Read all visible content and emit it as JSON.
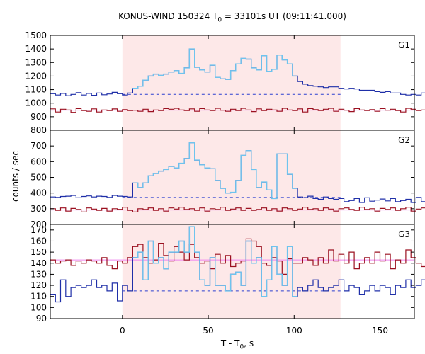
{
  "title": {
    "prefix": "KONUS-WIND 150324 T",
    "subscript": "0",
    "suffix": " = 33101s UT (09:11:41.000)"
  },
  "axes": {
    "xlabel_prefix": "T - T",
    "xlabel_subscript": "0",
    "xlabel_suffix": ", s",
    "ylabel": "counts / sec"
  },
  "colors": {
    "shading": "#fde8e8",
    "binned_dark": "#1f2fa8",
    "binned_light": "#6ec4ee",
    "background_dark": "#9b1020",
    "bg_fit_blue": "#2b3fd0",
    "bg_fit_pink": "#ee82ee"
  },
  "chart_data": {
    "type": "line",
    "x_range": [
      -42,
      170
    ],
    "x_ticks": [
      0,
      50,
      100,
      150
    ],
    "shaded_interval": [
      0,
      127
    ],
    "bin_width": 3,
    "panels": [
      {
        "name": "G1",
        "ylim": [
          800,
          1500
        ],
        "y_ticks": [
          900,
          1000,
          1100,
          1200,
          1300,
          1400,
          1500
        ],
        "y_ticks_min": [
          800
        ],
        "bg_level": 1065,
        "bg_fit_low": 948,
        "signal": [
          1070,
          1060,
          1072,
          1055,
          1065,
          1078,
          1060,
          1072,
          1058,
          1075,
          1062,
          1068,
          1080,
          1070,
          1060,
          1075,
          1110,
          1125,
          1170,
          1200,
          1215,
          1205,
          1215,
          1230,
          1240,
          1220,
          1260,
          1400,
          1265,
          1245,
          1230,
          1280,
          1190,
          1180,
          1175,
          1240,
          1290,
          1330,
          1325,
          1260,
          1245,
          1350,
          1235,
          1250,
          1355,
          1320,
          1290,
          1200,
          1160,
          1140,
          1130,
          1125,
          1120,
          1115,
          1120,
          1120,
          1110,
          1105,
          1110,
          1105,
          1095,
          1095,
          1095,
          1085,
          1080,
          1085,
          1075,
          1075,
          1065,
          1060,
          1065,
          1060,
          1075,
          1070,
          1060,
          1065,
          1060,
          1075,
          1085,
          1080,
          1095,
          1090,
          1095,
          1085,
          1080,
          1100,
          1090,
          1110,
          1110,
          1095,
          1085,
          1100
        ],
        "signal_light_range": [
          16,
          48
        ],
        "background": [
          958,
          935,
          955,
          950,
          932,
          960,
          945,
          940,
          958,
          935,
          950,
          945,
          957,
          940,
          952,
          945,
          948,
          940,
          955,
          938,
          950,
          945,
          960,
          955,
          962,
          950,
          945,
          958,
          940,
          960,
          950,
          945,
          962,
          948,
          940,
          955,
          945,
          962,
          950,
          938,
          958,
          945,
          955,
          950,
          940,
          962,
          950,
          945,
          958,
          935,
          960,
          952,
          945,
          955,
          962,
          940,
          955,
          948,
          938,
          960,
          950,
          945,
          952,
          940,
          960,
          948,
          955,
          945,
          935,
          962,
          955,
          945,
          950,
          960,
          940,
          955,
          948,
          962,
          950,
          945,
          938,
          960,
          950,
          945,
          955,
          935,
          962,
          948,
          955,
          945,
          950,
          940
        ]
      },
      {
        "name": "G2",
        "ylim": [
          200,
          800
        ],
        "y_ticks": [
          300,
          400,
          500,
          600,
          700
        ],
        "y_ticks_min": [
          200
        ],
        "bg_level": 372,
        "bg_fit_low": 292,
        "signal": [
          375,
          372,
          378,
          380,
          385,
          370,
          378,
          382,
          375,
          380,
          378,
          372,
          385,
          380,
          378,
          375,
          465,
          435,
          465,
          510,
          525,
          540,
          550,
          570,
          560,
          590,
          620,
          720,
          610,
          580,
          560,
          555,
          480,
          430,
          400,
          405,
          480,
          640,
          670,
          550,
          435,
          470,
          420,
          365,
          650,
          650,
          520,
          430,
          375,
          370,
          380,
          365,
          360,
          375,
          365,
          360,
          365,
          345,
          352,
          365,
          340,
          370,
          348,
          355,
          362,
          350,
          365,
          345,
          352,
          360,
          340,
          372,
          345,
          360,
          370,
          375,
          372,
          382,
          365,
          380,
          370,
          378,
          380,
          372,
          365,
          372,
          378,
          368,
          360,
          372,
          370,
          368
        ],
        "signal_light_range": [
          16,
          48
        ],
        "background": [
          300,
          290,
          305,
          285,
          302,
          295,
          280,
          305,
          298,
          290,
          302,
          285,
          300,
          296,
          310,
          290,
          280,
          300,
          295,
          305,
          290,
          300,
          285,
          305,
          298,
          310,
          295,
          300,
          290,
          305,
          285,
          300,
          295,
          310,
          290,
          298,
          305,
          290,
          302,
          290,
          295,
          305,
          290,
          300,
          285,
          305,
          300,
          290,
          298,
          310,
          295,
          300,
          290,
          305,
          298,
          285,
          300,
          305,
          295,
          290,
          310,
          295,
          300,
          285,
          302,
          295,
          305,
          290,
          300,
          310,
          285,
          298,
          305,
          290,
          300,
          295,
          312,
          285,
          305,
          295,
          300,
          290,
          310,
          298,
          305,
          290,
          302,
          295,
          300,
          305,
          295,
          300
        ]
      },
      {
        "name": "G3",
        "ylim": [
          90,
          175
        ],
        "y_ticks": [
          100,
          110,
          120,
          130,
          140,
          150,
          160,
          170
        ],
        "y_ticks_min": [
          90
        ],
        "bg_level": 115,
        "bg_fit_low": 143,
        "signal": [
          112,
          105,
          125,
          110,
          118,
          120,
          118,
          120,
          125,
          118,
          120,
          115,
          122,
          106,
          120,
          115,
          145,
          150,
          125,
          160,
          140,
          145,
          135,
          150,
          150,
          160,
          150,
          173,
          150,
          125,
          120,
          145,
          120,
          120,
          115,
          130,
          132,
          120,
          160,
          140,
          145,
          110,
          125,
          155,
          130,
          120,
          155,
          110,
          118,
          115,
          120,
          125,
          118,
          115,
          118,
          120,
          125,
          115,
          120,
          118,
          112,
          115,
          120,
          115,
          120,
          118,
          112,
          120,
          118,
          125,
          118,
          120,
          125,
          120,
          118,
          115,
          120,
          125,
          118,
          118,
          120,
          115,
          110,
          120,
          118,
          115,
          105,
          118,
          120,
          112,
          118,
          120
        ],
        "signal_light_range": [
          16,
          48
        ],
        "background": [
          143,
          140,
          142,
          143,
          138,
          142,
          140,
          143,
          142,
          140,
          145,
          138,
          135,
          142,
          140,
          145,
          155,
          157,
          145,
          140,
          143,
          158,
          147,
          142,
          155,
          150,
          143,
          157,
          145,
          140,
          142,
          135,
          148,
          140,
          147,
          137,
          140,
          142,
          162,
          160,
          155,
          140,
          138,
          145,
          142,
          130,
          144,
          140,
          140,
          145,
          143,
          138,
          145,
          140,
          152,
          142,
          148,
          140,
          150,
          135,
          140,
          145,
          140,
          150,
          142,
          148,
          135,
          143,
          140,
          152,
          145,
          140,
          137,
          135,
          142,
          148,
          140,
          152,
          135,
          143,
          140,
          150,
          152,
          140,
          143,
          145,
          140,
          148,
          140,
          142,
          147,
          143
        ]
      }
    ]
  }
}
